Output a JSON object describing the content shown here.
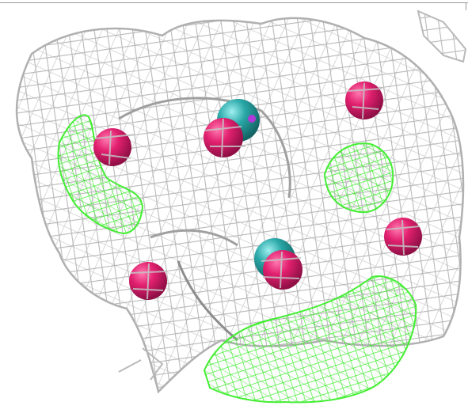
{
  "scene": {
    "background": "#ffffff",
    "colors": {
      "density_mesh": "#b9b9b9",
      "density_mesh_dark": "#8c8c8c",
      "difference_mesh": "#44ee33",
      "ion_sphere": "#d81b6b",
      "ion_sphere_highlight": "#ff79b0",
      "alt_ion_sphere": "#2aa7a7",
      "alt_ion_highlight": "#86e0e0",
      "small_marker": "#b03ad8"
    },
    "objects": [
      {
        "kind": "density-mesh",
        "label": ""
      },
      {
        "kind": "difference-density-mesh",
        "count": 3
      },
      {
        "kind": "ion-spheres",
        "magenta": 6,
        "teal": 2
      }
    ]
  }
}
